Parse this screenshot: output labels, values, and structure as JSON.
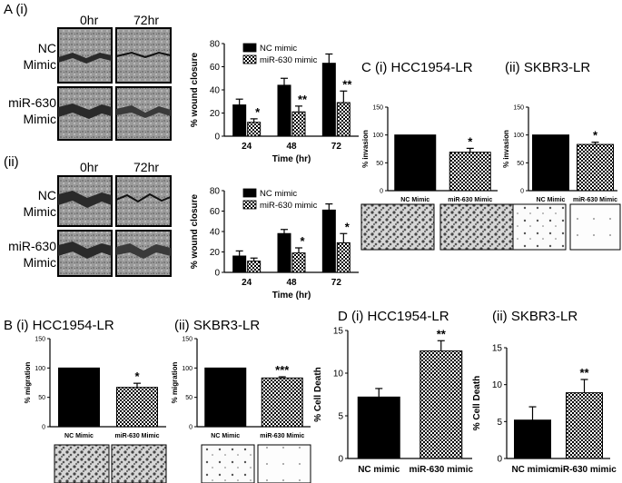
{
  "panels": {
    "A": {
      "label": "A (i)",
      "sub_ii": "(ii)",
      "time_0": "0hr",
      "time_72": "72hr",
      "row_nc": "NC\nMimic",
      "row_mir": "miR-630\nMimic",
      "row_nc_2": "NC\nMimic",
      "row_mir_2": "miR-630\nMimic",
      "time_0_2": "0hr",
      "time_72_2": "72hr"
    },
    "B": {
      "label_i": "B (i) HCC1954-LR",
      "label_ii": "(ii) SKBR3-LR"
    },
    "C": {
      "label_i": "C (i) HCC1954-LR",
      "label_ii": "(ii) SKBR3-LR"
    },
    "D": {
      "label_i": "D (i) HCC1954-LR",
      "label_ii": "(ii) SKBR3-LR"
    }
  },
  "colors": {
    "black_bar": "#000000",
    "checker_bar": "#ffffff",
    "background": "#ffffff"
  },
  "chart_data": [
    {
      "id": "A-i",
      "type": "bar",
      "categories": [
        "24",
        "48",
        "72"
      ],
      "xlabel": "Time (hr)",
      "ylabel": "% wound closure",
      "ylim": [
        0,
        80
      ],
      "yticks": [
        0,
        20,
        40,
        60,
        80
      ],
      "legend": "top-left",
      "series": [
        {
          "name": "NC mimic",
          "style": "solid",
          "values": [
            27,
            44,
            63
          ],
          "errors": [
            5,
            6,
            8
          ]
        },
        {
          "name": "miR-630 mimic",
          "style": "checker",
          "values": [
            12,
            21,
            29
          ],
          "errors": [
            3,
            5,
            10
          ]
        }
      ],
      "annotations": [
        "*",
        "**",
        "**"
      ]
    },
    {
      "id": "A-ii",
      "type": "bar",
      "categories": [
        "24",
        "48",
        "72"
      ],
      "xlabel": "Time (hr)",
      "ylabel": "% wound closure",
      "ylim": [
        0,
        80
      ],
      "yticks": [
        0,
        20,
        40,
        60,
        80
      ],
      "legend": "top-left",
      "series": [
        {
          "name": "NC mimic",
          "style": "solid",
          "values": [
            16,
            38,
            61
          ],
          "errors": [
            5,
            4,
            6
          ]
        },
        {
          "name": "miR-630 mimic",
          "style": "checker",
          "values": [
            11,
            19,
            29
          ],
          "errors": [
            3,
            5,
            9
          ]
        }
      ],
      "annotations": [
        "",
        "*",
        "*"
      ]
    },
    {
      "id": "B-i",
      "type": "bar",
      "categories": [
        "NC Mimic",
        "miR-630 Mimic"
      ],
      "ylabel": "% migration",
      "ylim": [
        0,
        150
      ],
      "yticks": [
        0,
        50,
        100,
        150
      ],
      "values": [
        100,
        67
      ],
      "errors": [
        0,
        7
      ],
      "styles": [
        "solid",
        "checker"
      ],
      "annotations": [
        "",
        "*"
      ]
    },
    {
      "id": "B-ii",
      "type": "bar",
      "categories": [
        "NC Mimic",
        "miR-630 Mimic"
      ],
      "ylabel": "% migration",
      "ylim": [
        0,
        150
      ],
      "yticks": [
        0,
        50,
        100,
        150
      ],
      "values": [
        100,
        83
      ],
      "errors": [
        0,
        2
      ],
      "styles": [
        "solid",
        "checker"
      ],
      "annotations": [
        "",
        "***"
      ]
    },
    {
      "id": "C-i",
      "type": "bar",
      "categories": [
        "NC Mimic",
        "miR-630 Mimic"
      ],
      "ylabel": "% invasion",
      "ylim": [
        0,
        150
      ],
      "yticks": [
        0,
        50,
        100,
        150
      ],
      "values": [
        100,
        69
      ],
      "errors": [
        0,
        7
      ],
      "styles": [
        "solid",
        "checker"
      ],
      "annotations": [
        "",
        "*"
      ]
    },
    {
      "id": "C-ii",
      "type": "bar",
      "categories": [
        "NC Mimic",
        "miR-630 Mimic"
      ],
      "ylabel": "% invasion",
      "ylim": [
        0,
        150
      ],
      "yticks": [
        0,
        50,
        100,
        150
      ],
      "values": [
        100,
        83
      ],
      "errors": [
        0,
        4
      ],
      "styles": [
        "solid",
        "checker"
      ],
      "annotations": [
        "",
        "*"
      ]
    },
    {
      "id": "D-i",
      "type": "bar",
      "categories": [
        "NC mimic",
        "miR-630 mimic"
      ],
      "ylabel": "% Cell Death",
      "ylim": [
        0,
        15
      ],
      "yticks": [
        0,
        5,
        10,
        15
      ],
      "values": [
        7.2,
        12.6
      ],
      "errors": [
        1.0,
        1.2
      ],
      "styles": [
        "solid",
        "checker"
      ],
      "annotations": [
        "",
        "**"
      ]
    },
    {
      "id": "D-ii",
      "type": "bar",
      "categories": [
        "NC mimic",
        "miR-630 mimic"
      ],
      "ylabel": "% Cell Death",
      "ylim": [
        0,
        15
      ],
      "yticks": [
        0,
        5,
        10,
        15
      ],
      "values": [
        5.2,
        8.9
      ],
      "errors": [
        1.8,
        1.8
      ],
      "styles": [
        "solid",
        "checker"
      ],
      "annotations": [
        "",
        "**"
      ]
    }
  ]
}
